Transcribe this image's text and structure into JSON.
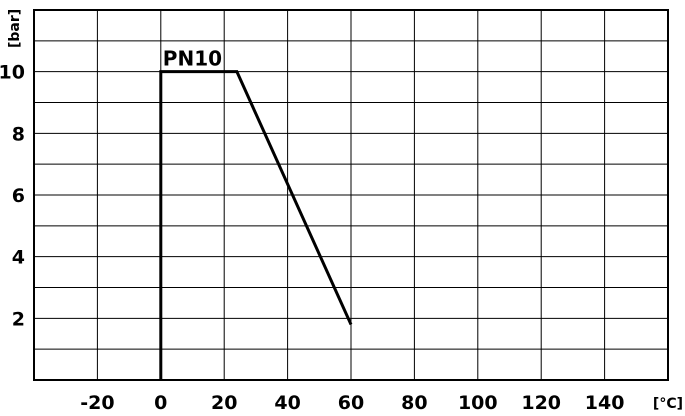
{
  "chart_data": {
    "type": "line",
    "title": "",
    "xlabel": "[°C]",
    "ylabel": "[bar]",
    "xlim": [
      -40,
      160
    ],
    "ylim": [
      0,
      12
    ],
    "x_ticks": [
      -20,
      0,
      20,
      40,
      60,
      80,
      100,
      120,
      140
    ],
    "y_ticks": [
      2,
      4,
      6,
      8,
      10
    ],
    "x_gridlines": [
      -20,
      0,
      20,
      40,
      60,
      80,
      100,
      120,
      140
    ],
    "y_gridlines": [
      1,
      2,
      3,
      4,
      5,
      6,
      7,
      8,
      9,
      10,
      11
    ],
    "grid": true,
    "series": [
      {
        "name": "PN10",
        "x": [
          0,
          0,
          24,
          60
        ],
        "y": [
          0,
          10,
          10,
          1.8
        ]
      }
    ],
    "annotations": [
      {
        "text": "PN10",
        "x": 0,
        "y": 10
      }
    ]
  }
}
